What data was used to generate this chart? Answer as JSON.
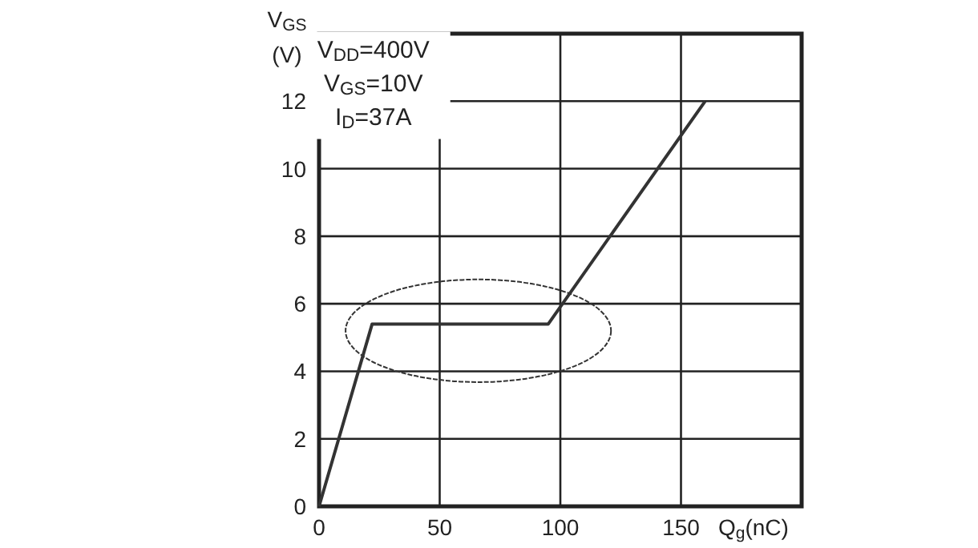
{
  "chart_data": {
    "type": "line",
    "xlabel": "Q$_{g}$(nC)",
    "ylabel": "V$_{GS}$ (V)",
    "x": [
      0,
      22,
      95,
      160
    ],
    "series": [
      {
        "color": "#333333",
        "values": [
          0,
          5.4,
          5.4,
          12
        ]
      }
    ],
    "xlim": [
      0,
      200
    ],
    "xticks": [
      0,
      50,
      100,
      150
    ],
    "ylim": [
      0,
      14
    ],
    "yticks": [
      0,
      2,
      4,
      6,
      8,
      10,
      12
    ],
    "grid": true,
    "marker": "none",
    "line_style": "solid",
    "annotations": [
      "V$_{DD}$=400V",
      "V$_{GS}$=10V",
      "I$_{D}$=37A"
    ]
  }
}
